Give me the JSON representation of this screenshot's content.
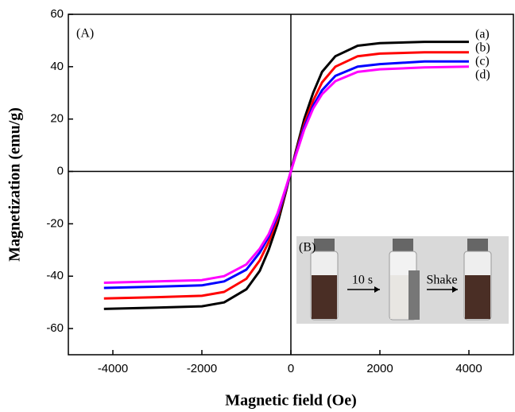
{
  "chart_data": {
    "type": "line",
    "x_label": "Magnetic field (Oe)",
    "y_label": "Magnetization (emu/g)",
    "x": [
      -4200,
      -3000,
      -2000,
      -1500,
      -1000,
      -700,
      -500,
      -300,
      -100,
      0,
      100,
      300,
      500,
      700,
      1000,
      1500,
      2000,
      3000,
      4000
    ],
    "series": [
      {
        "name": "(a)",
        "color": "#000000",
        "values": [
          -52.5,
          -52,
          -51.5,
          -50,
          -45,
          -38,
          -30,
          -20,
          -7,
          0,
          7,
          20,
          30,
          38,
          44,
          48,
          49,
          49.5,
          49.5
        ]
      },
      {
        "name": "(b)",
        "color": "#ff0000",
        "values": [
          -48.5,
          -48,
          -47.5,
          -46,
          -41,
          -34,
          -27,
          -18,
          -6.5,
          0,
          6.5,
          18,
          27,
          34,
          40,
          44,
          45,
          45.5,
          45.5
        ]
      },
      {
        "name": "(c)",
        "color": "#0000ff",
        "values": [
          -44.5,
          -44,
          -43.5,
          -42,
          -37.5,
          -31,
          -25,
          -17,
          -6,
          0,
          6,
          17,
          25,
          31,
          36.5,
          40,
          41,
          42,
          42
        ]
      },
      {
        "name": "(d)",
        "color": "#ff00ff",
        "values": [
          -42.5,
          -42,
          -41.5,
          -40,
          -35.5,
          -29.5,
          -24,
          -16,
          -5.5,
          0,
          5.5,
          16,
          24,
          29.5,
          34.5,
          38,
          39,
          39.7,
          40
        ]
      }
    ],
    "xlim": [
      -5000,
      5000
    ],
    "xticks": [
      -4000,
      -2000,
      0,
      2000,
      4000
    ],
    "ylim": [
      -70,
      60
    ],
    "yticks": [
      -60,
      -40,
      -20,
      0,
      20,
      40,
      60
    ],
    "panel_label": "(A)",
    "inset": {
      "label": "(B)",
      "step_1": "10 s",
      "step_2": "Shake"
    }
  }
}
